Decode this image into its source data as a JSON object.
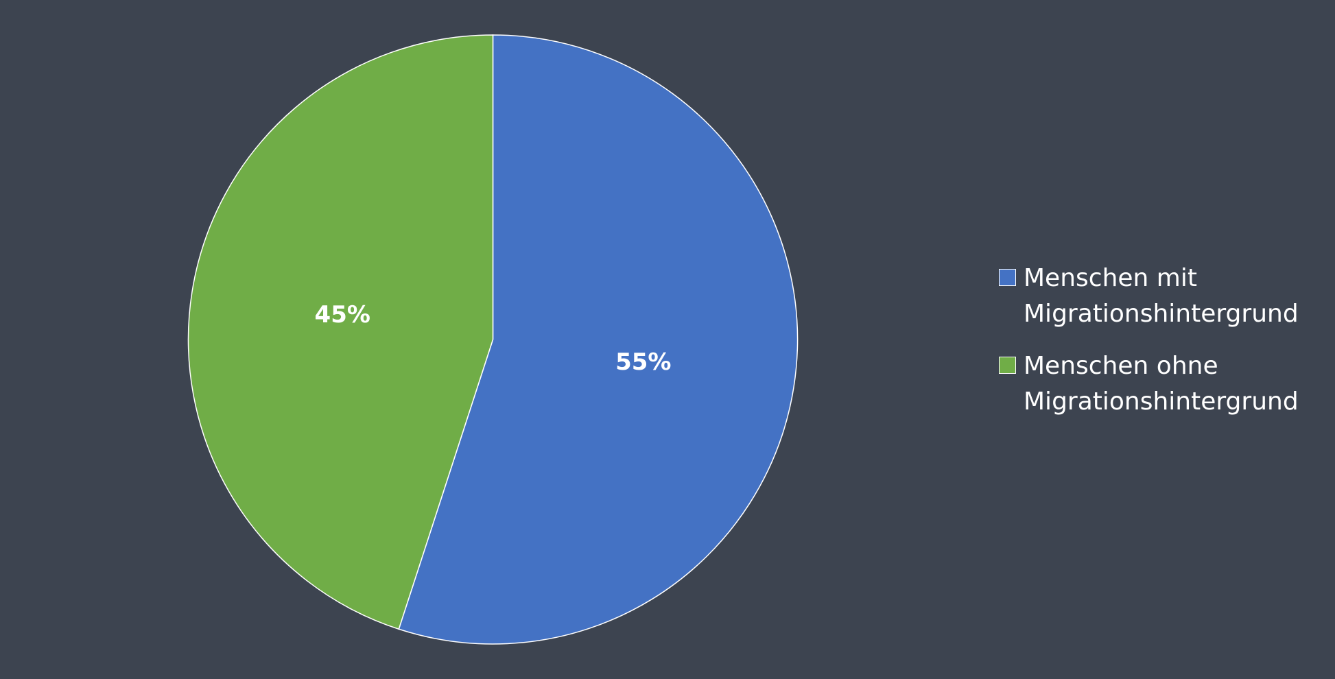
{
  "chart_data": {
    "type": "pie",
    "categories": [
      "Menschen mit Migrationshintergrund",
      "Menschen ohne Migrationshintergrund"
    ],
    "values": [
      55,
      45
    ],
    "value_labels": [
      "55%",
      "45%"
    ],
    "colors": [
      "#4472c4",
      "#70ad47"
    ],
    "legend": "right"
  }
}
